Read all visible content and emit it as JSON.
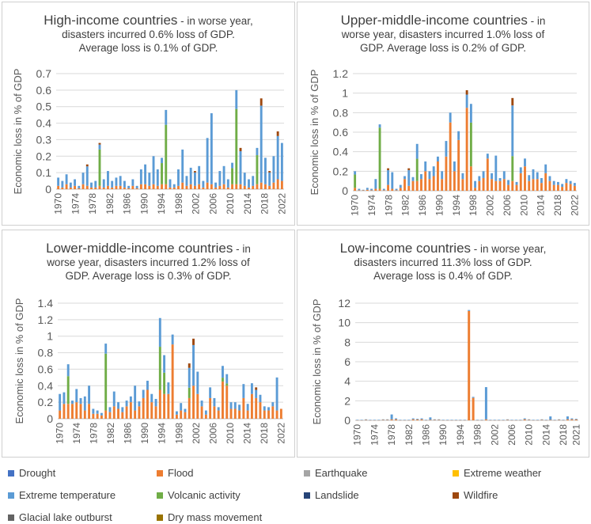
{
  "categories": [
    {
      "name": "Drought",
      "color": "#4472c4"
    },
    {
      "name": "Flood",
      "color": "#ed7d31"
    },
    {
      "name": "Earthquake",
      "color": "#a5a5a5"
    },
    {
      "name": "Extreme weather",
      "color": "#ffc000"
    },
    {
      "name": "Extreme temperature",
      "color": "#5b9bd5"
    },
    {
      "name": "Volcanic activity",
      "color": "#70ad47"
    },
    {
      "name": "Landslide",
      "color": "#264478"
    },
    {
      "name": "Wildfire",
      "color": "#9e480e"
    },
    {
      "name": "Glacial lake outburst",
      "color": "#636363"
    },
    {
      "name": "Dry mass movement",
      "color": "#997300"
    }
  ],
  "chart_data": [
    {
      "id": "high",
      "type": "bar",
      "stacked": true,
      "title_bold": "High-income countries",
      "title_rest": " - in worse year,",
      "title_line2": "disasters incurred 0.6% loss of GDP.",
      "title_line3": "Average loss is 0.1% of GDP.",
      "ylabel": "Economic loss in % of GDP",
      "ylim": [
        0,
        0.7
      ],
      "yticks": [
        "0",
        "0.1",
        "0.2",
        "0.3",
        "0.4",
        "0.5",
        "0.6",
        "0.7"
      ],
      "xticks": [
        "1970",
        "1974",
        "1978",
        "1982",
        "1986",
        "1990",
        "1994",
        "1998",
        "2002",
        "2006",
        "2010",
        "2014",
        "2018",
        "2022"
      ],
      "x_start": 1970,
      "x_end": 2022,
      "totals": [
        0.07,
        0.05,
        0.09,
        0.04,
        0.06,
        0.02,
        0.1,
        0.15,
        0.04,
        0.05,
        0.28,
        0.06,
        0.11,
        0.05,
        0.07,
        0.08,
        0.05,
        0.02,
        0.06,
        0.02,
        0.12,
        0.15,
        0.1,
        0.2,
        0.12,
        0.19,
        0.48,
        0.06,
        0.03,
        0.12,
        0.24,
        0.08,
        0.13,
        0.11,
        0.14,
        0.05,
        0.31,
        0.46,
        0.04,
        0.11,
        0.14,
        0.06,
        0.16,
        0.6,
        0.25,
        0.1,
        0.06,
        0.08,
        0.25,
        0.55,
        0.19,
        0.11,
        0.2,
        0.35,
        0.28
      ],
      "flood": [
        0.02,
        0.01,
        0.03,
        0.01,
        0.02,
        0.005,
        0.03,
        0.02,
        0.01,
        0.01,
        0.02,
        0.01,
        0.02,
        0.01,
        0.02,
        0.02,
        0.01,
        0.005,
        0.02,
        0.005,
        0.03,
        0.03,
        0.02,
        0.03,
        0.02,
        0.03,
        0.03,
        0.01,
        0.01,
        0.02,
        0.04,
        0.02,
        0.03,
        0.02,
        0.03,
        0.01,
        0.04,
        0.03,
        0.01,
        0.02,
        0.03,
        0.01,
        0.03,
        0.03,
        0.03,
        0.02,
        0.01,
        0.02,
        0.03,
        0.04,
        0.03,
        0.02,
        0.04,
        0.06,
        0.05
      ],
      "green_idx": [
        10,
        25,
        26,
        42,
        43,
        48
      ],
      "wild_idx": [
        7,
        10,
        33,
        44,
        49,
        51,
        53
      ],
      "green_share": [
        0.85,
        0.8,
        0.8,
        0.75,
        0.8,
        0.8
      ]
    },
    {
      "id": "uppermid",
      "type": "bar",
      "stacked": true,
      "title_bold": "Upper-middle-income countries",
      "title_rest": " - in",
      "title_line2": "worse year, disasters incurred 1.0% loss of",
      "title_line3": "GDP. Average loss is 0.2% of GDP.",
      "ylabel": "Economic loss in % of GDP",
      "ylim": [
        0,
        1.2
      ],
      "yticks": [
        "0",
        "0.2",
        "0.4",
        "0.6",
        "0.8",
        "1",
        "1.2"
      ],
      "xticks": [
        "1970",
        "1974",
        "1978",
        "1982",
        "1986",
        "1990",
        "1994",
        "1998",
        "2002",
        "2006",
        "2010",
        "2014",
        "2018",
        "2022"
      ],
      "x_start": 1970,
      "x_end": 2022,
      "totals": [
        0.2,
        0.02,
        0.01,
        0.03,
        0.02,
        0.12,
        0.68,
        0.02,
        0.23,
        0.19,
        0.02,
        0.06,
        0.15,
        0.23,
        0.14,
        0.48,
        0.17,
        0.3,
        0.2,
        0.25,
        0.35,
        0.2,
        0.51,
        0.8,
        0.3,
        0.61,
        0.18,
        1.03,
        0.89,
        0.1,
        0.15,
        0.2,
        0.38,
        0.18,
        0.36,
        0.13,
        0.2,
        0.11,
        0.95,
        0.09,
        0.24,
        0.33,
        0.16,
        0.22,
        0.19,
        0.13,
        0.27,
        0.15,
        0.1,
        0.09,
        0.07,
        0.12,
        0.1,
        0.08
      ],
      "flood": [
        0.03,
        0.005,
        0.005,
        0.01,
        0.005,
        0.02,
        0.02,
        0.005,
        0.06,
        0.02,
        0.005,
        0.03,
        0.12,
        0.05,
        0.1,
        0.1,
        0.12,
        0.2,
        0.12,
        0.15,
        0.3,
        0.12,
        0.35,
        0.7,
        0.2,
        0.52,
        0.12,
        0.85,
        0.25,
        0.03,
        0.1,
        0.13,
        0.33,
        0.12,
        0.1,
        0.1,
        0.12,
        0.06,
        0.1,
        0.06,
        0.18,
        0.25,
        0.1,
        0.12,
        0.12,
        0.08,
        0.18,
        0.1,
        0.06,
        0.06,
        0.04,
        0.08,
        0.07,
        0.05
      ],
      "green_idx": [
        0,
        6,
        15,
        28,
        38
      ],
      "wild_idx": [
        8,
        13,
        27,
        38
      ],
      "green_share": [
        0.8,
        0.95,
        0.6,
        0.7,
        0.3
      ]
    },
    {
      "id": "lowermid",
      "type": "bar",
      "stacked": true,
      "title_bold": "Lower-middle-income countries",
      "title_rest": " - in",
      "title_line2": "worse year, disasters incurred 1.2% loss of",
      "title_line3": "GDP. Average loss is 0.3% of GDP.",
      "ylabel": "Economic loss in % of GDP",
      "ylim": [
        0,
        1.4
      ],
      "yticks": [
        "0",
        "0.2",
        "0.4",
        "0.6",
        "0.8",
        "1",
        "1.2",
        "1.4"
      ],
      "xticks": [
        "1970",
        "1974",
        "1978",
        "1982",
        "1986",
        "1990",
        "1994",
        "1998",
        "2002",
        "2006",
        "2010",
        "2014",
        "2018",
        "2022"
      ],
      "x_start": 1970,
      "x_end": 2022,
      "totals": [
        0.3,
        0.32,
        0.66,
        0.22,
        0.36,
        0.25,
        0.27,
        0.4,
        0.12,
        0.1,
        0.07,
        0.91,
        0.14,
        0.33,
        0.2,
        0.14,
        0.22,
        0.27,
        0.4,
        0.21,
        0.35,
        0.46,
        0.3,
        0.24,
        1.22,
        0.77,
        0.44,
        1.02,
        0.09,
        0.19,
        0.12,
        0.67,
        0.97,
        0.57,
        0.22,
        0.1,
        0.38,
        0.25,
        0.14,
        0.64,
        0.54,
        0.2,
        0.2,
        0.17,
        0.42,
        0.18,
        0.43,
        0.38,
        0.29,
        0.15,
        0.14,
        0.2,
        0.5,
        0.12
      ],
      "flood": [
        0.1,
        0.18,
        0.18,
        0.18,
        0.2,
        0.18,
        0.1,
        0.18,
        0.06,
        0.06,
        0.04,
        0.1,
        0.08,
        0.15,
        0.12,
        0.08,
        0.15,
        0.2,
        0.1,
        0.15,
        0.25,
        0.35,
        0.2,
        0.15,
        0.35,
        0.3,
        0.3,
        0.9,
        0.05,
        0.1,
        0.08,
        0.25,
        0.4,
        0.3,
        0.15,
        0.05,
        0.25,
        0.15,
        0.1,
        0.45,
        0.4,
        0.12,
        0.12,
        0.1,
        0.25,
        0.1,
        0.3,
        0.25,
        0.2,
        0.1,
        0.1,
        0.15,
        0.1,
        0.12
      ],
      "green_idx": [
        2,
        11,
        24,
        25,
        31,
        39,
        40
      ],
      "wild_idx": [
        31,
        32,
        47
      ],
      "green_share": [
        0.7,
        0.85,
        0.6,
        0.55,
        0.3,
        0.25,
        0.2
      ]
    },
    {
      "id": "low",
      "type": "bar",
      "stacked": true,
      "title_bold": "Low-income countries",
      "title_rest": " - in worse year,",
      "title_line2": "disasters incurred 11.3% loss of GDP.",
      "title_line3": "Average loss is 0.4% of GDP.",
      "ylabel": "Economic loss in % of GDP",
      "ylim": [
        0,
        12
      ],
      "yticks": [
        "0",
        "2",
        "4",
        "6",
        "8",
        "10",
        "12"
      ],
      "xticks": [
        "1970",
        "1974",
        "1978",
        "1982",
        "1986",
        "1990",
        "1994",
        "1998",
        "2002",
        "2006",
        "2010",
        "2014",
        "2018",
        "2021"
      ],
      "x_start": 1970,
      "x_end": 2021,
      "totals": [
        0.05,
        0.05,
        0.1,
        0.05,
        0.05,
        0.05,
        0.1,
        0.1,
        0.6,
        0.2,
        0.05,
        0.05,
        0.05,
        0.2,
        0.15,
        0.2,
        0.05,
        0.3,
        0.1,
        0.1,
        0.05,
        0.05,
        0.05,
        0.05,
        0.05,
        0.05,
        11.3,
        2.4,
        0.05,
        0.05,
        3.4,
        0.05,
        0.05,
        0.05,
        0.05,
        0.1,
        0.05,
        0.05,
        0.05,
        0.2,
        0.1,
        0.05,
        0.05,
        0.1,
        0.05,
        0.4,
        0.05,
        0.1,
        0.05,
        0.4,
        0.2,
        0.15
      ],
      "flood": [
        0.03,
        0.03,
        0.05,
        0.03,
        0.03,
        0.03,
        0.05,
        0.05,
        0.1,
        0.1,
        0.03,
        0.03,
        0.03,
        0.1,
        0.08,
        0.1,
        0.03,
        0.05,
        0.05,
        0.05,
        0.03,
        0.03,
        0.03,
        0.03,
        0.03,
        0.03,
        11.2,
        2.3,
        0.03,
        0.03,
        0.1,
        0.03,
        0.03,
        0.03,
        0.03,
        0.05,
        0.03,
        0.03,
        0.03,
        0.1,
        0.05,
        0.03,
        0.03,
        0.05,
        0.03,
        0.05,
        0.03,
        0.05,
        0.03,
        0.1,
        0.1,
        0.08
      ],
      "green_idx": [],
      "wild_idx": [],
      "green_share": []
    }
  ]
}
